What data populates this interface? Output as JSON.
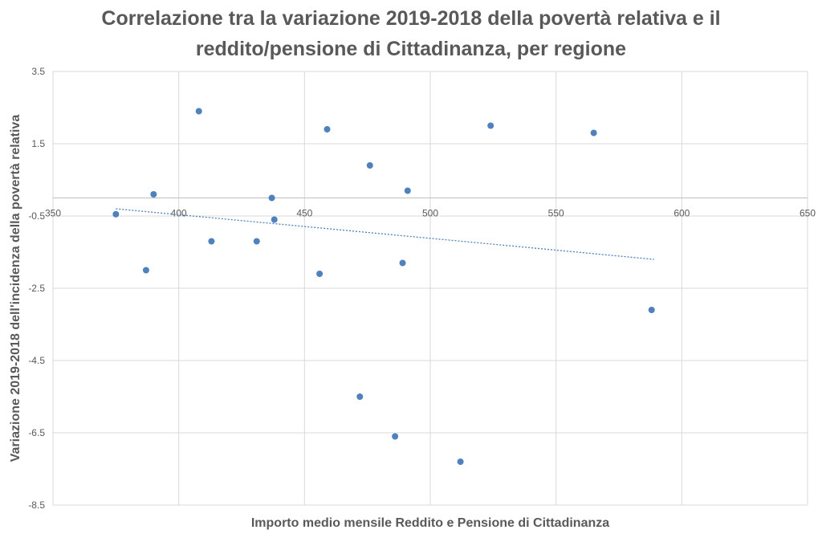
{
  "chart_data": {
    "type": "scatter",
    "title_lines": [
      "Correlazione tra la variazione 2019-2018 della povertà relativa e il",
      "reddito/pensione di Cittadinanza, per regione"
    ],
    "xlabel": "Importo medio mensile Reddito e Pensione di Cittadinanza",
    "ylabel": "Variazione 2019-2018 dell'incidenza della povertà relativa",
    "xlim": [
      350,
      650
    ],
    "ylim": [
      -8.5,
      3.5
    ],
    "x_ticks": [
      350,
      400,
      450,
      500,
      550,
      600,
      650
    ],
    "y_ticks": [
      3.5,
      1.5,
      -0.5,
      -2.5,
      -4.5,
      -6.5,
      -8.5
    ],
    "x_axis_crosses_y": 0,
    "grid": true,
    "marker_color": "#4f81bd",
    "trendline": {
      "style": "dotted",
      "color": "#4f81bd",
      "x": [
        375,
        589
      ],
      "y": [
        -0.3,
        -1.7
      ]
    },
    "points": [
      {
        "x": 375,
        "y": -0.45
      },
      {
        "x": 387,
        "y": -2.0
      },
      {
        "x": 390,
        "y": 0.1
      },
      {
        "x": 408,
        "y": 2.4
      },
      {
        "x": 413,
        "y": -1.2
      },
      {
        "x": 431,
        "y": -1.2
      },
      {
        "x": 437,
        "y": 0.0
      },
      {
        "x": 438,
        "y": -0.6
      },
      {
        "x": 456,
        "y": -2.1
      },
      {
        "x": 459,
        "y": 1.9
      },
      {
        "x": 472,
        "y": -5.5
      },
      {
        "x": 476,
        "y": 0.9
      },
      {
        "x": 486,
        "y": -6.6
      },
      {
        "x": 489,
        "y": -1.8
      },
      {
        "x": 491,
        "y": 0.2
      },
      {
        "x": 512,
        "y": -7.3
      },
      {
        "x": 524,
        "y": 2.0
      },
      {
        "x": 565,
        "y": 1.8
      },
      {
        "x": 588,
        "y": -3.1
      }
    ]
  }
}
